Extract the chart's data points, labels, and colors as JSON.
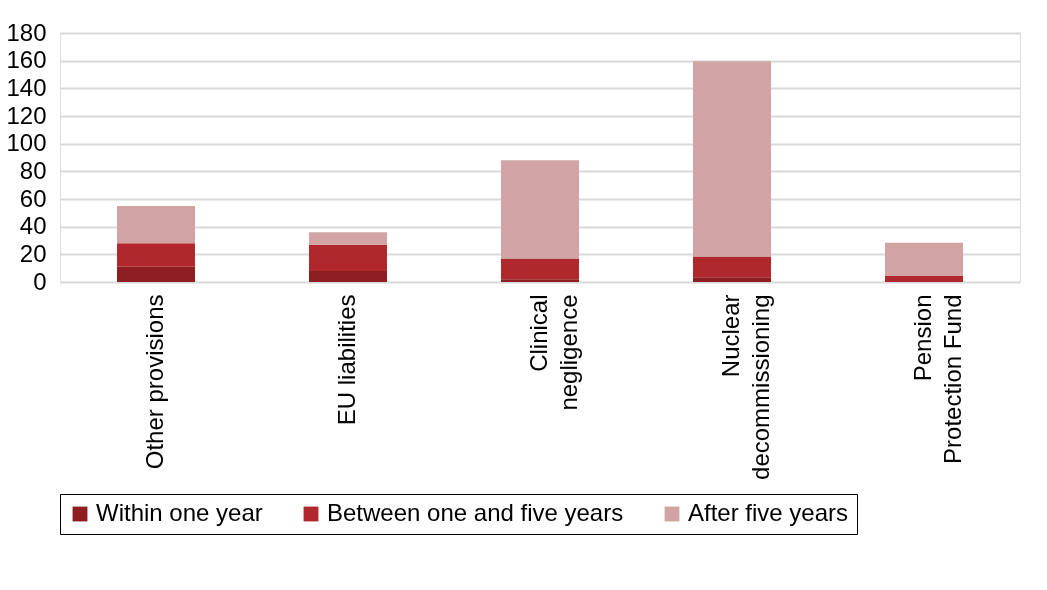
{
  "chart_data": {
    "type": "bar",
    "stacked": true,
    "categories": [
      "Other provisions",
      "EU liabilities",
      "Clinical\nnegligence",
      "Nuclear\ndecommissioning",
      "Pension\nProtection Fund"
    ],
    "series": [
      {
        "name": "Within one year",
        "color": "#8e1e22",
        "values": [
          11,
          8,
          2,
          3.5,
          0
        ]
      },
      {
        "name": "Between one and five years",
        "color": "#b0282e",
        "values": [
          17,
          19,
          15,
          15,
          4.3
        ]
      },
      {
        "name": "After five years",
        "color": "#d1a3a3",
        "values": [
          27,
          9,
          71,
          141,
          24
        ]
      }
    ],
    "ylim": [
      0,
      180
    ],
    "yticks": [
      0,
      20,
      40,
      60,
      80,
      100,
      120,
      140,
      160,
      180
    ],
    "grid": "y",
    "legend": "bottom"
  }
}
